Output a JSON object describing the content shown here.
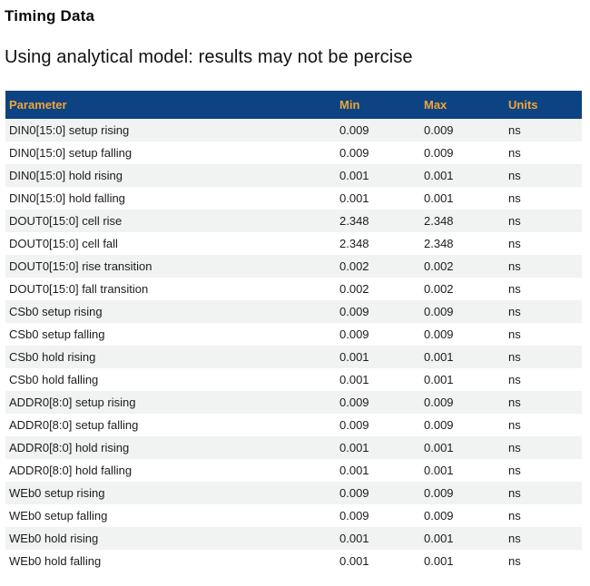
{
  "page": {
    "title": "Timing Data",
    "subtitle": "Using analytical model: results may not be percise"
  },
  "table": {
    "columns": [
      "Parameter",
      "Min",
      "Max",
      "Units"
    ],
    "rows": [
      {
        "parameter": "DIN0[15:0] setup rising",
        "min": "0.009",
        "max": "0.009",
        "units": "ns"
      },
      {
        "parameter": "DIN0[15:0] setup falling",
        "min": "0.009",
        "max": "0.009",
        "units": "ns"
      },
      {
        "parameter": "DIN0[15:0] hold rising",
        "min": "0.001",
        "max": "0.001",
        "units": "ns"
      },
      {
        "parameter": "DIN0[15:0] hold falling",
        "min": "0.001",
        "max": "0.001",
        "units": "ns"
      },
      {
        "parameter": "DOUT0[15:0] cell rise",
        "min": "2.348",
        "max": "2.348",
        "units": "ns"
      },
      {
        "parameter": "DOUT0[15:0] cell fall",
        "min": "2.348",
        "max": "2.348",
        "units": "ns"
      },
      {
        "parameter": "DOUT0[15:0] rise transition",
        "min": "0.002",
        "max": "0.002",
        "units": "ns"
      },
      {
        "parameter": "DOUT0[15:0] fall transition",
        "min": "0.002",
        "max": "0.002",
        "units": "ns"
      },
      {
        "parameter": "CSb0 setup rising",
        "min": "0.009",
        "max": "0.009",
        "units": "ns"
      },
      {
        "parameter": "CSb0 setup falling",
        "min": "0.009",
        "max": "0.009",
        "units": "ns"
      },
      {
        "parameter": "CSb0 hold rising",
        "min": "0.001",
        "max": "0.001",
        "units": "ns"
      },
      {
        "parameter": "CSb0 hold falling",
        "min": "0.001",
        "max": "0.001",
        "units": "ns"
      },
      {
        "parameter": "ADDR0[8:0] setup rising",
        "min": "0.009",
        "max": "0.009",
        "units": "ns"
      },
      {
        "parameter": "ADDR0[8:0] setup falling",
        "min": "0.009",
        "max": "0.009",
        "units": "ns"
      },
      {
        "parameter": "ADDR0[8:0] hold rising",
        "min": "0.001",
        "max": "0.001",
        "units": "ns"
      },
      {
        "parameter": "ADDR0[8:0] hold falling",
        "min": "0.001",
        "max": "0.001",
        "units": "ns"
      },
      {
        "parameter": "WEb0 setup rising",
        "min": "0.009",
        "max": "0.009",
        "units": "ns"
      },
      {
        "parameter": "WEb0 setup falling",
        "min": "0.009",
        "max": "0.009",
        "units": "ns"
      },
      {
        "parameter": "WEb0 hold rising",
        "min": "0.001",
        "max": "0.001",
        "units": "ns"
      },
      {
        "parameter": "WEb0 hold falling",
        "min": "0.001",
        "max": "0.001",
        "units": "ns"
      }
    ]
  },
  "colors": {
    "header_bg": "#0E4383",
    "header_text": "#EFA537",
    "row_alt_bg": "#F1F2F2",
    "body_text": "#1C1C1C"
  }
}
